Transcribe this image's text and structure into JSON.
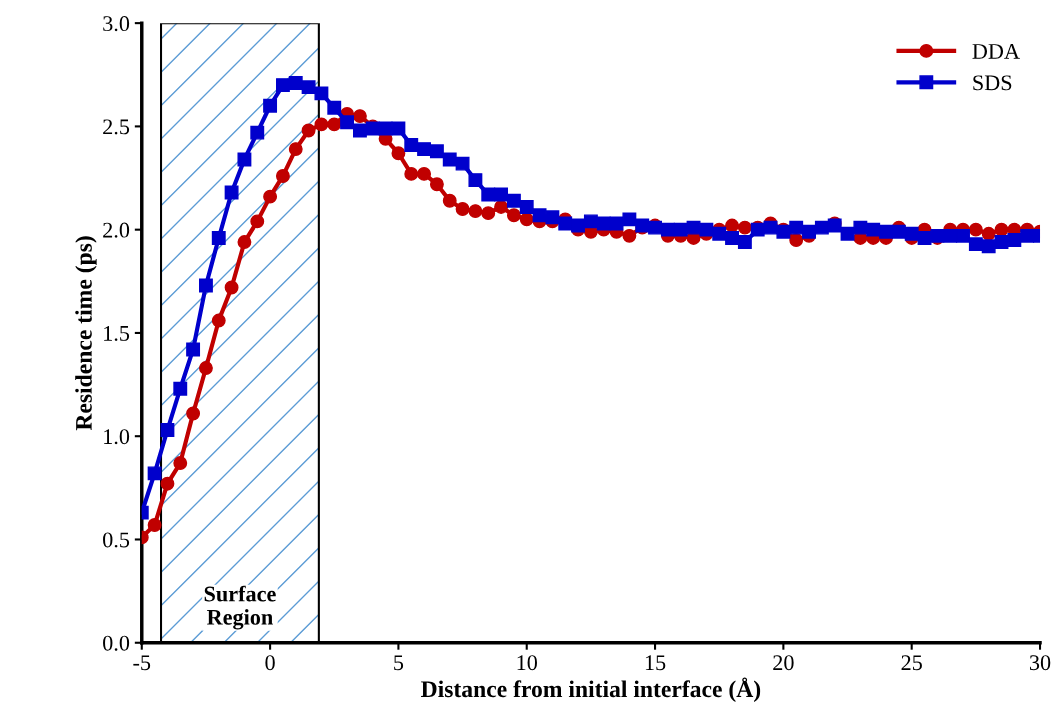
{
  "chart_data": {
    "type": "line",
    "xlabel": "Distance from initial interface (Å)",
    "ylabel": "Residence time (ps)",
    "x": [
      -5,
      -4.5,
      -4,
      -3.5,
      -3,
      -2.5,
      -2,
      -1.5,
      -1,
      -0.5,
      0,
      0.5,
      1,
      1.5,
      2,
      2.5,
      3,
      3.5,
      4,
      4.5,
      5,
      5.5,
      6,
      6.5,
      7,
      7.5,
      8,
      8.5,
      9,
      9.5,
      10,
      10.5,
      11,
      11.5,
      12,
      12.5,
      13,
      13.5,
      14,
      14.5,
      15,
      15.5,
      16,
      16.5,
      17,
      17.5,
      18,
      18.5,
      19,
      19.5,
      20,
      20.5,
      21,
      21.5,
      22,
      22.5,
      23,
      23.5,
      24,
      24.5,
      25,
      25.5,
      26,
      26.5,
      27,
      27.5,
      28,
      28.5,
      29,
      29.5,
      30
    ],
    "series": [
      {
        "name": "DDA",
        "color": "#c00000",
        "marker": "circle",
        "values": [
          0.51,
          0.57,
          0.77,
          0.87,
          1.11,
          1.33,
          1.56,
          1.72,
          1.94,
          2.04,
          2.16,
          2.26,
          2.39,
          2.48,
          2.51,
          2.51,
          2.56,
          2.55,
          2.5,
          2.44,
          2.37,
          2.27,
          2.27,
          2.22,
          2.14,
          2.1,
          2.09,
          2.08,
          2.11,
          2.07,
          2.05,
          2.04,
          2.04,
          2.05,
          2.0,
          1.99,
          2.0,
          1.99,
          1.97,
          2.01,
          2.02,
          1.97,
          1.97,
          1.96,
          1.98,
          2.0,
          2.02,
          2.01,
          2.01,
          2.03,
          2.0,
          1.95,
          1.97,
          null,
          2.03,
          null,
          1.96,
          1.96,
          1.96,
          2.01,
          1.96,
          2.0,
          1.96,
          2.0,
          2.0,
          2.0,
          1.98,
          2.0,
          2.0,
          2.0,
          1.99
        ]
      },
      {
        "name": "SDS",
        "color": "#0000cc",
        "marker": "square",
        "values": [
          0.63,
          0.82,
          1.03,
          1.23,
          1.42,
          1.73,
          1.96,
          2.18,
          2.34,
          2.47,
          2.6,
          2.7,
          2.71,
          2.69,
          2.66,
          2.59,
          2.52,
          2.48,
          2.49,
          2.49,
          2.49,
          2.41,
          2.39,
          2.38,
          2.34,
          2.32,
          2.24,
          2.17,
          2.17,
          2.14,
          2.11,
          2.07,
          2.06,
          2.03,
          2.02,
          2.04,
          2.03,
          2.03,
          2.05,
          2.02,
          2.01,
          2.0,
          2.0,
          2.01,
          2.0,
          1.98,
          1.96,
          1.94,
          2.0,
          2.01,
          1.99,
          2.01,
          1.99,
          2.01,
          2.02,
          1.98,
          2.01,
          2.0,
          1.99,
          1.99,
          1.98,
          1.96,
          1.97,
          1.97,
          1.97,
          1.93,
          1.92,
          1.94,
          1.95,
          1.97,
          1.97
        ]
      }
    ],
    "xlim": [
      -5,
      30
    ],
    "xticks": [
      -5,
      0,
      5,
      10,
      15,
      20,
      25,
      30
    ],
    "ylim": [
      0,
      3
    ],
    "yticks": [
      {
        "value": 0,
        "label": "0.0"
      },
      {
        "value": 0.5,
        "label": "0.5"
      },
      {
        "value": 1,
        "label": "1.0"
      },
      {
        "value": 1.5,
        "label": "1.5"
      },
      {
        "value": 2,
        "label": "2.0"
      },
      {
        "value": 2.5,
        "label": "2.5"
      },
      {
        "value": 3,
        "label": "3.0"
      }
    ],
    "bands": [
      {
        "axis": "x",
        "from": -4.25,
        "to": 1.9,
        "label": "Surface\nRegion",
        "color": "#5b9bd5"
      }
    ],
    "grid": false,
    "legend": "top right",
    "line_style": "solid"
  }
}
